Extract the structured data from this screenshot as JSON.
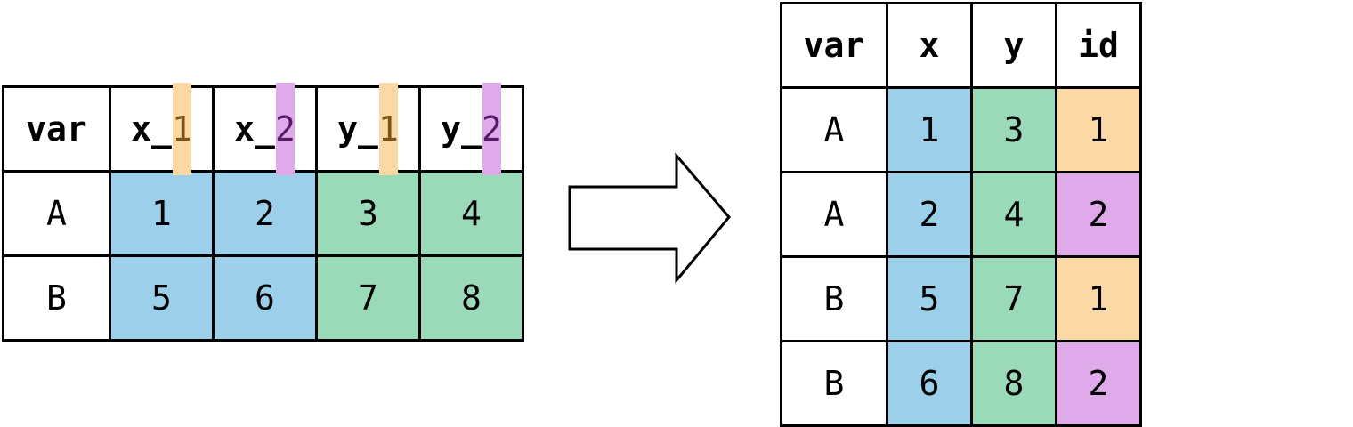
{
  "left_table": {
    "header": {
      "var": "var",
      "x1_prefix": "x_",
      "x1_suffix": "1",
      "x2_prefix": "x_",
      "x2_suffix": "2",
      "y1_prefix": "y_",
      "y1_suffix": "1",
      "y2_prefix": "y_",
      "y2_suffix": "2"
    },
    "rows": [
      {
        "var": "A",
        "x_1": "1",
        "x_2": "2",
        "y_1": "3",
        "y_2": "4"
      },
      {
        "var": "B",
        "x_1": "5",
        "x_2": "6",
        "y_1": "7",
        "y_2": "8"
      }
    ]
  },
  "right_table": {
    "header": {
      "var": "var",
      "x": "x",
      "y": "y",
      "id": "id"
    },
    "rows": [
      {
        "var": "A",
        "x": "1",
        "y": "3",
        "id": "1"
      },
      {
        "var": "A",
        "x": "2",
        "y": "4",
        "id": "2"
      },
      {
        "var": "B",
        "x": "5",
        "y": "7",
        "id": "1"
      },
      {
        "var": "B",
        "x": "6",
        "y": "8",
        "id": "2"
      }
    ]
  },
  "colors": {
    "x_columns": "#9ccfe9",
    "y_columns": "#9bdab9",
    "id_1": "#fcd9a4",
    "id_2": "#dfaae9"
  },
  "arrow_icon": "right-arrow-icon"
}
